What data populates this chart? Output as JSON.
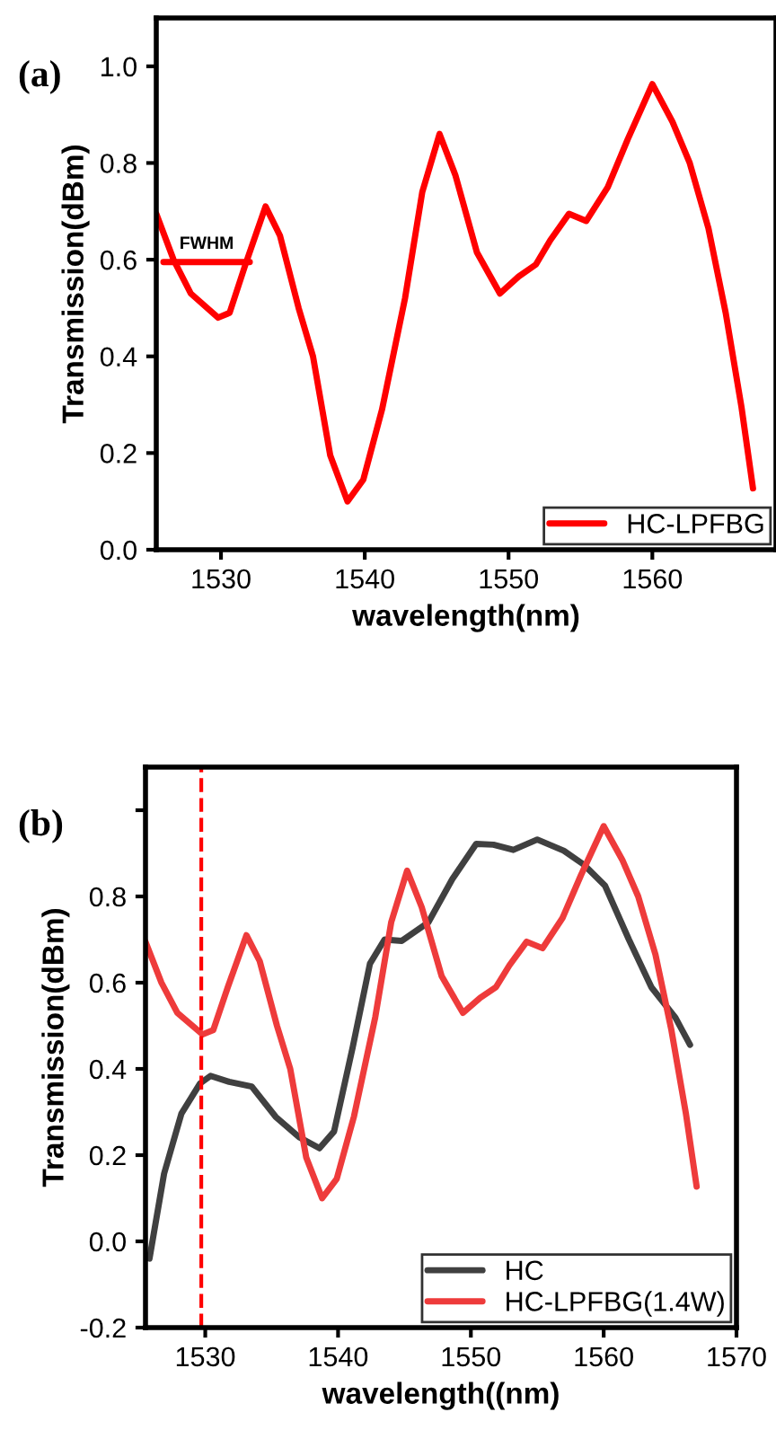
{
  "chart_data": [
    {
      "type": "line",
      "xlabel": "wavelength(nm)",
      "ylabel": "Transmission(dBm)",
      "xlim": [
        1525.5,
        1568.6
      ],
      "ylim": [
        0,
        1.1
      ],
      "xticks": [
        1530,
        1540,
        1550,
        1560
      ],
      "yticks": [
        {
          "value": 0,
          "label": "0.0"
        },
        {
          "value": 0.2,
          "label": "0.2"
        },
        {
          "value": 0.4,
          "label": "0.4"
        },
        {
          "value": 0.6,
          "label": "0.6"
        },
        {
          "value": 0.8,
          "label": "0.8"
        },
        {
          "value": 1.0,
          "label": "1.0"
        }
      ],
      "grid": false,
      "legend": "bottom right",
      "annotations": [
        "(a)",
        {
          "text": "FWHM",
          "x": 1529,
          "y": 0.595
        }
      ],
      "series": [
        {
          "name": "HC-LPFBG",
          "color": "#ff0000",
          "x": [
            1525.5,
            1526.7,
            1527.9,
            1529.8,
            1530.6,
            1531.7,
            1533.1,
            1534.1,
            1535.4,
            1536.4,
            1537.6,
            1538.8,
            1539.9,
            1541.2,
            1542.8,
            1544.0,
            1545.2,
            1546.3,
            1547.8,
            1549.4,
            1550.7,
            1551.9,
            1552.9,
            1554.2,
            1555.4,
            1556.9,
            1558.3,
            1560.0,
            1561.4,
            1562.6,
            1563.9,
            1565.1,
            1566.2,
            1567.0
          ],
          "values": [
            0.695,
            0.6,
            0.53,
            0.48,
            0.49,
            0.59,
            0.71,
            0.65,
            0.5,
            0.4,
            0.195,
            0.1,
            0.145,
            0.29,
            0.52,
            0.74,
            0.86,
            0.775,
            0.615,
            0.53,
            0.565,
            0.59,
            0.64,
            0.695,
            0.68,
            0.75,
            0.85,
            0.963,
            0.885,
            0.8,
            0.665,
            0.49,
            0.295,
            0.127
          ]
        },
        {
          "color": "#ff0000",
          "x": [
            1526.0,
            1532.0
          ],
          "values": [
            0.595,
            0.595
          ]
        }
      ]
    },
    {
      "type": "line",
      "xlabel": "wavelength((nm)",
      "ylabel": "Transmission(dBm)",
      "xlim": [
        1525.5,
        1570
      ],
      "ylim": [
        -0.2,
        1.1
      ],
      "xticks": [
        1530,
        1540,
        1550,
        1560,
        1570
      ],
      "yticks": [
        {
          "value": -0.2,
          "label": "-0.2"
        },
        {
          "value": 0,
          "label": "0.0"
        },
        {
          "value": 0.2,
          "label": "0.2"
        },
        {
          "value": 0.4,
          "label": "0.4"
        },
        {
          "value": 0.6,
          "label": "0.6"
        },
        {
          "value": 0.8,
          "label": "0.8"
        },
        {
          "value": 1.0,
          "label": null
        }
      ],
      "grid": false,
      "legend": "bottom right",
      "annotations": [
        "(b)"
      ],
      "ref_lines": [
        {
          "axis": "x",
          "value": 1529.7,
          "color": "#ff0000",
          "line_style": "dashed"
        }
      ],
      "series": [
        {
          "name": "HC",
          "color": "#404040",
          "x": [
            1525.8,
            1526.9,
            1528.2,
            1529.6,
            1530.4,
            1531.8,
            1533.5,
            1535.3,
            1537.1,
            1538.6,
            1539.7,
            1541.1,
            1542.4,
            1543.5,
            1544.8,
            1546.8,
            1548.6,
            1550.4,
            1551.7,
            1553.2,
            1555.0,
            1557.0,
            1558.5,
            1560.1,
            1561.9,
            1563.6,
            1565.4,
            1566.5
          ],
          "values": [
            -0.04,
            0.157,
            0.296,
            0.366,
            0.384,
            0.37,
            0.359,
            0.289,
            0.241,
            0.216,
            0.255,
            0.45,
            0.644,
            0.7,
            0.697,
            0.74,
            0.84,
            0.922,
            0.92,
            0.908,
            0.932,
            0.906,
            0.874,
            0.825,
            0.7,
            0.589,
            0.519,
            0.456
          ]
        },
        {
          "name": "HC-LPFBG(1.4W)",
          "color": "#ee3b3b",
          "x": [
            1525.5,
            1526.7,
            1527.9,
            1529.8,
            1530.6,
            1531.7,
            1533.1,
            1534.1,
            1535.4,
            1536.4,
            1537.6,
            1538.8,
            1539.9,
            1541.2,
            1542.8,
            1544.0,
            1545.2,
            1546.3,
            1547.8,
            1549.4,
            1550.7,
            1551.9,
            1552.9,
            1554.2,
            1555.4,
            1556.9,
            1558.3,
            1560.0,
            1561.4,
            1562.6,
            1563.9,
            1565.1,
            1566.2,
            1567.0
          ],
          "values": [
            0.695,
            0.6,
            0.53,
            0.48,
            0.49,
            0.59,
            0.71,
            0.65,
            0.5,
            0.4,
            0.195,
            0.1,
            0.145,
            0.29,
            0.52,
            0.74,
            0.86,
            0.775,
            0.615,
            0.53,
            0.565,
            0.59,
            0.64,
            0.695,
            0.68,
            0.75,
            0.85,
            0.963,
            0.885,
            0.8,
            0.665,
            0.49,
            0.295,
            0.127
          ]
        }
      ]
    }
  ]
}
